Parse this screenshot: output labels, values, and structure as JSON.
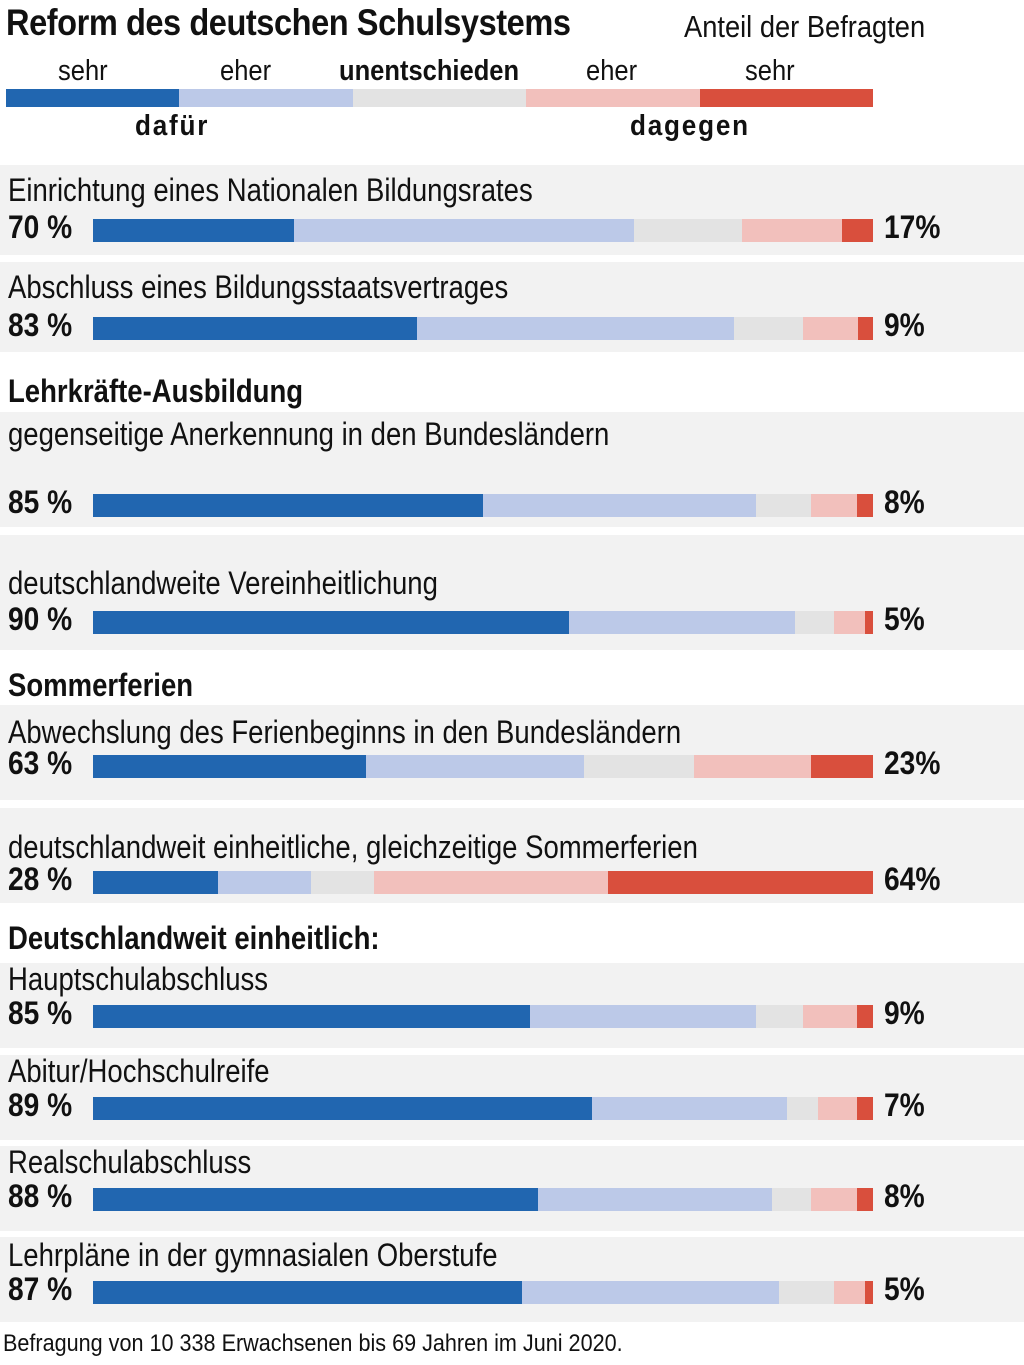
{
  "title": "Reform des deutschen Schulsystems",
  "subtitle": "Anteil der Befragten",
  "legend": {
    "labels": [
      "sehr",
      "eher",
      "unentschieden",
      "eher",
      "sehr"
    ],
    "group_for": "dafür",
    "group_against": "dagegen"
  },
  "footnote": "Befragung von 10 338 Erwachsenen bis 69 Jahren im Juni 2020.",
  "colors": {
    "strong_for": "#2166b0",
    "rather_for": "#bcc9e8",
    "undecided": "#e3e3e3",
    "rather_against": "#f2c0bc",
    "strong_against": "#d94f3d",
    "row_background": "#f2f2f2"
  },
  "chart_data": {
    "type": "bar",
    "stacked": true,
    "orientation": "horizontal",
    "segment_order": [
      "sehr dafür",
      "eher dafür",
      "unentschieden",
      "eher dagegen",
      "sehr dagegen"
    ],
    "xlim": [
      0,
      100
    ],
    "rows": [
      {
        "section": "",
        "label": "Einrichtung eines Nationalen Bildungsrates",
        "for_total": "70 %",
        "against_total": "17%",
        "values": [
          26,
          44,
          14,
          13,
          4
        ]
      },
      {
        "section": "",
        "label": "Abschluss eines Bildungsstaatsvertrages",
        "for_total": "83 %",
        "against_total": "9%",
        "values": [
          42,
          41,
          9,
          7,
          2
        ]
      },
      {
        "section": "Lehrkräfte-Ausbildung",
        "label": "gegenseitige Anerkennung in den Bundesländern",
        "for_total": "85 %",
        "against_total": "8%",
        "values": [
          50,
          35,
          7,
          6,
          2
        ]
      },
      {
        "section": "",
        "label": "deutschlandweite Vereinheitlichung",
        "for_total": "90 %",
        "against_total": "5%",
        "values": [
          61,
          29,
          5,
          4,
          1
        ]
      },
      {
        "section": "Sommerferien",
        "label": "Abwechslung des Ferienbeginns in den Bundesländern",
        "for_total": "63 %",
        "against_total": "23%",
        "values": [
          35,
          28,
          14,
          15,
          8
        ]
      },
      {
        "section": "",
        "label": "deutschlandweit einheitliche, gleichzeitige Sommerferien",
        "for_total": "28 %",
        "against_total": "64%",
        "values": [
          16,
          12,
          8,
          30,
          34
        ]
      },
      {
        "section": "Deutschlandweit einheitlich:",
        "label": "Hauptschulabschluss",
        "for_total": "85 %",
        "against_total": "9%",
        "values": [
          56,
          29,
          6,
          7,
          2
        ]
      },
      {
        "section": "",
        "label": "Abitur/Hochschulreife",
        "for_total": "89 %",
        "against_total": "7%",
        "values": [
          64,
          25,
          4,
          5,
          2
        ]
      },
      {
        "section": "",
        "label": "Realschulabschluss",
        "for_total": "88 %",
        "against_total": "8%",
        "values": [
          57,
          30,
          5,
          6,
          2
        ]
      },
      {
        "section": "",
        "label": "Lehrpläne in der gymnasialen Oberstufe",
        "for_total": "87 %",
        "against_total": "5%",
        "values": [
          55,
          33,
          7,
          4,
          1
        ]
      }
    ]
  }
}
